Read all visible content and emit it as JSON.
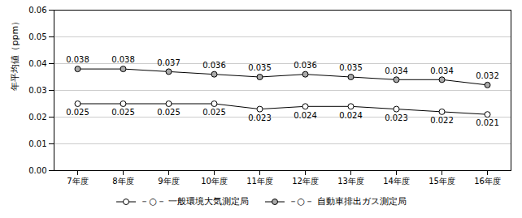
{
  "chart_data": {
    "type": "line",
    "categories": [
      "7年度",
      "8年度",
      "9年度",
      "10年度",
      "11年度",
      "12年度",
      "13年度",
      "14年度",
      "15年度",
      "16年度"
    ],
    "series": [
      {
        "name": "－○－ 一般環境大気測定局",
        "color": "#ffffff",
        "marker": "circle",
        "values": [
          0.025,
          0.025,
          0.025,
          0.025,
          0.023,
          0.024,
          0.024,
          0.023,
          0.022,
          0.021
        ]
      },
      {
        "name": "－○－ 自動車排出ガス測定局",
        "color": "#aaaaaa",
        "marker": "circle",
        "values": [
          0.038,
          0.038,
          0.037,
          0.036,
          0.035,
          0.036,
          0.035,
          0.034,
          0.034,
          0.032
        ]
      }
    ],
    "color": "#000000",
    "ylabel": "年平均値（ppm）",
    "ylim": [
      0.0,
      0.06
    ],
    "yticks": [
      {
        "value": 0,
        "label": "0.00"
      },
      0.01,
      0.02,
      0.03,
      0.04,
      0.05,
      0.06
    ],
    "grid": true,
    "legend": "bottom",
    "data_labels": true
  }
}
